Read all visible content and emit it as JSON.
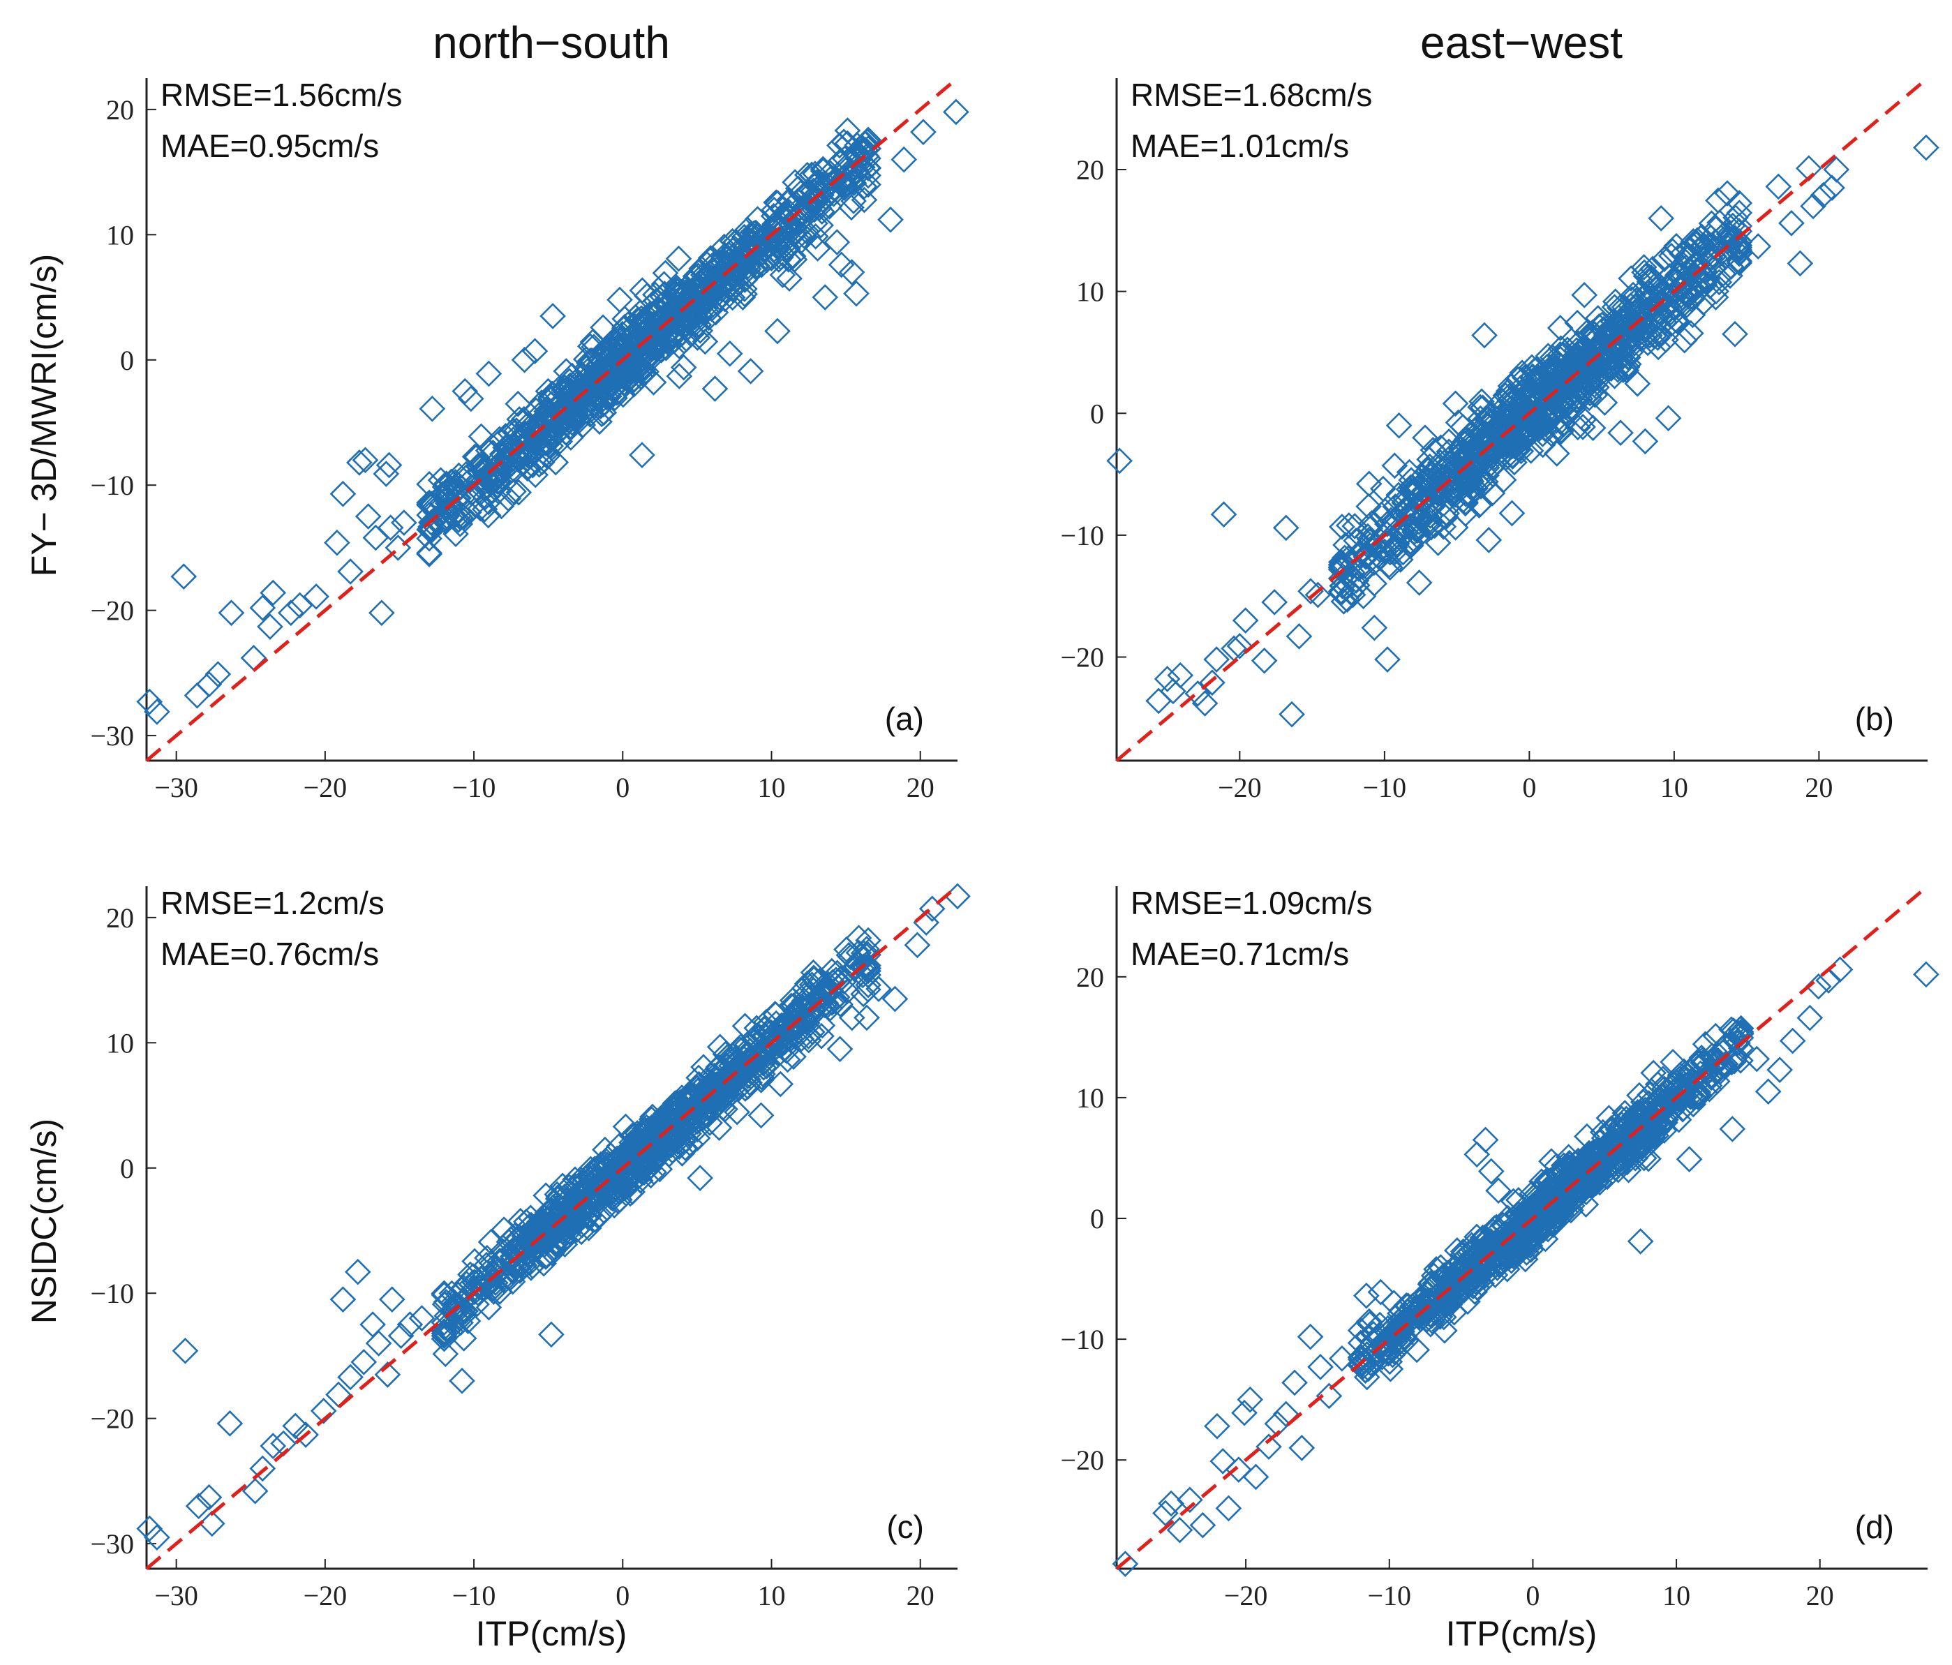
{
  "figure": {
    "column_titles": [
      "north−south",
      "east−west"
    ],
    "ylabels": [
      "FY− 3D/MWRI(cm/s)",
      "NSIDC(cm/s)"
    ],
    "xlabel": "ITP(cm/s)"
  },
  "colors": {
    "marker": "#1f6fb5",
    "fit_line": "#e0201b",
    "axis": "#222222"
  },
  "chart_data": [
    {
      "type": "scatter",
      "panel": "(a)",
      "stat1": "RMSE=1.56cm/s",
      "stat2": "MAE=0.95cm/s",
      "xlim": [
        -32,
        22.5
      ],
      "ylim": [
        -32,
        22.5
      ],
      "xticks": [
        -30,
        -20,
        -10,
        0,
        10,
        20
      ],
      "yticks": [
        -30,
        -20,
        -10,
        0,
        10,
        20
      ],
      "xtick_labels": [
        "−30",
        "−20",
        "−10",
        "0",
        "10",
        "20"
      ],
      "ytick_labels": [
        "−30",
        "−20",
        "−10",
        "0",
        "10",
        "20"
      ],
      "line": [
        [
          -32,
          -32
        ],
        [
          22.5,
          22.5
        ]
      ],
      "cluster": {
        "x_range": [
          -13,
          16.5
        ],
        "spread": 1.4,
        "count": 900,
        "seed": 11
      },
      "points": [
        [
          -31.8,
          -27.3
        ],
        [
          -31.3,
          -28.1
        ],
        [
          -29.5,
          -17.3
        ],
        [
          -28.6,
          -26.8
        ],
        [
          -27.8,
          -25.9
        ],
        [
          -27.2,
          -25.1
        ],
        [
          -26.3,
          -20.2
        ],
        [
          -24.8,
          -23.8
        ],
        [
          -24.2,
          -19.8
        ],
        [
          -23.7,
          -21.3
        ],
        [
          -23.5,
          -18.6
        ],
        [
          -22.3,
          -20.2
        ],
        [
          -21.7,
          -19.6
        ],
        [
          -20.6,
          -18.9
        ],
        [
          -19.2,
          -14.6
        ],
        [
          -18.8,
          -10.7
        ],
        [
          -18.3,
          -16.9
        ],
        [
          -17.7,
          -8.2
        ],
        [
          -17.3,
          -8.0
        ],
        [
          -17.1,
          -12.5
        ],
        [
          -16.6,
          -14.2
        ],
        [
          -16.2,
          -20.2
        ],
        [
          -15.9,
          -9.1
        ],
        [
          -15.7,
          -8.4
        ],
        [
          -15.6,
          -13.4
        ],
        [
          -15.1,
          -15.0
        ],
        [
          -14.7,
          -13.0
        ],
        [
          -12.8,
          -3.9
        ],
        [
          -10.6,
          -2.5
        ],
        [
          -10.2,
          -3.1
        ],
        [
          -9.0,
          -1.1
        ],
        [
          -6.6,
          0.0
        ],
        [
          -5.9,
          0.7
        ],
        [
          -4.7,
          3.5
        ],
        [
          -3.8,
          -0.9
        ],
        [
          -0.8,
          0.3
        ],
        [
          -0.2,
          4.8
        ],
        [
          1.3,
          -7.6
        ],
        [
          3.8,
          -1.3
        ],
        [
          4.1,
          -0.6
        ],
        [
          6.2,
          -2.3
        ],
        [
          7.2,
          0.5
        ],
        [
          8.6,
          -0.9
        ],
        [
          10.4,
          2.3
        ],
        [
          13.6,
          5.0
        ],
        [
          14.4,
          9.4
        ],
        [
          14.7,
          7.6
        ],
        [
          15.4,
          7.0
        ],
        [
          15.7,
          5.3
        ],
        [
          18.0,
          11.2
        ],
        [
          18.9,
          16.0
        ],
        [
          20.2,
          18.2
        ],
        [
          22.4,
          19.8
        ],
        [
          13.1,
          8.9
        ],
        [
          16.5,
          14.0
        ],
        [
          11.2,
          6.5
        ]
      ]
    },
    {
      "type": "scatter",
      "panel": "(b)",
      "stat1": "RMSE=1.68cm/s",
      "stat2": "MAE=1.01cm/s",
      "xlim": [
        -28.5,
        27.5
      ],
      "ylim": [
        -28.5,
        27.5
      ],
      "xticks": [
        -20,
        -10,
        0,
        10,
        20
      ],
      "yticks": [
        -20,
        -10,
        0,
        10,
        20
      ],
      "xtick_labels": [
        "−20",
        "−10",
        "0",
        "10",
        "20"
      ],
      "ytick_labels": [
        "−20",
        "−10",
        "0",
        "10",
        "20"
      ],
      "line": [
        [
          -28.5,
          -28.5
        ],
        [
          27.5,
          27.5
        ]
      ],
      "cluster": {
        "x_range": [
          -13,
          14.5
        ],
        "spread": 1.7,
        "count": 900,
        "seed": 23
      },
      "points": [
        [
          -28.3,
          -3.9
        ],
        [
          -25.6,
          -23.6
        ],
        [
          -25.0,
          -21.8
        ],
        [
          -24.6,
          -22.8
        ],
        [
          -24.1,
          -21.5
        ],
        [
          -22.9,
          -23.0
        ],
        [
          -22.4,
          -23.8
        ],
        [
          -21.9,
          -22.1
        ],
        [
          -21.6,
          -20.2
        ],
        [
          -21.1,
          -8.3
        ],
        [
          -20.4,
          -19.3
        ],
        [
          -20.0,
          -19.1
        ],
        [
          -19.6,
          -17.0
        ],
        [
          -18.3,
          -20.3
        ],
        [
          -17.6,
          -15.5
        ],
        [
          -16.8,
          -9.4
        ],
        [
          -16.4,
          -24.7
        ],
        [
          -15.9,
          -18.3
        ],
        [
          -15.1,
          -14.6
        ],
        [
          -14.6,
          -14.9
        ],
        [
          -12.5,
          -11.9
        ],
        [
          -10.7,
          -17.6
        ],
        [
          -10.1,
          -6.2
        ],
        [
          -9.8,
          -20.2
        ],
        [
          -9.3,
          -4.3
        ],
        [
          -9.0,
          -1.0
        ],
        [
          -7.6,
          -13.9
        ],
        [
          -7.2,
          -2.0
        ],
        [
          -5.8,
          -8.5
        ],
        [
          -5.1,
          0.8
        ],
        [
          -4.4,
          -3.9
        ],
        [
          -3.1,
          6.4
        ],
        [
          -2.8,
          -10.4
        ],
        [
          -1.2,
          -8.2
        ],
        [
          1.9,
          -3.3
        ],
        [
          2.2,
          -1.4
        ],
        [
          3.8,
          9.7
        ],
        [
          4.4,
          -1.2
        ],
        [
          6.3,
          -1.6
        ],
        [
          8.0,
          -2.3
        ],
        [
          9.1,
          16.0
        ],
        [
          9.6,
          -0.4
        ],
        [
          9.9,
          13.3
        ],
        [
          11.5,
          10.5
        ],
        [
          11.6,
          14.2
        ],
        [
          14.2,
          6.5
        ],
        [
          15.8,
          13.7
        ],
        [
          17.2,
          18.6
        ],
        [
          18.1,
          15.6
        ],
        [
          18.7,
          12.3
        ],
        [
          19.3,
          20.1
        ],
        [
          19.6,
          17.0
        ],
        [
          20.3,
          17.9
        ],
        [
          20.9,
          18.5
        ],
        [
          21.2,
          20.0
        ],
        [
          27.4,
          21.8
        ]
      ]
    },
    {
      "type": "scatter",
      "panel": "(c)",
      "stat1": "RMSE=1.2cm/s",
      "stat2": "MAE=0.76cm/s",
      "xlim": [
        -32,
        22.5
      ],
      "ylim": [
        -32,
        22.5
      ],
      "xticks": [
        -30,
        -20,
        -10,
        0,
        10,
        20
      ],
      "yticks": [
        -30,
        -20,
        -10,
        0,
        10,
        20
      ],
      "xtick_labels": [
        "−30",
        "−20",
        "−10",
        "0",
        "10",
        "20"
      ],
      "ytick_labels": [
        "−30",
        "−20",
        "−10",
        "0",
        "10",
        "20"
      ],
      "line": [
        [
          -32,
          -32
        ],
        [
          22.5,
          22.5
        ]
      ],
      "cluster": {
        "x_range": [
          -12,
          16.5
        ],
        "spread": 1.1,
        "count": 900,
        "seed": 37
      },
      "points": [
        [
          -31.8,
          -28.8
        ],
        [
          -31.3,
          -29.5
        ],
        [
          -29.4,
          -14.6
        ],
        [
          -28.5,
          -27.0
        ],
        [
          -27.8,
          -26.3
        ],
        [
          -27.6,
          -28.4
        ],
        [
          -26.4,
          -20.4
        ],
        [
          -24.7,
          -25.8
        ],
        [
          -24.2,
          -24.0
        ],
        [
          -23.5,
          -22.2
        ],
        [
          -22.8,
          -22.0
        ],
        [
          -22.0,
          -20.6
        ],
        [
          -21.3,
          -21.3
        ],
        [
          -20.1,
          -19.4
        ],
        [
          -19.1,
          -18.1
        ],
        [
          -18.8,
          -10.5
        ],
        [
          -18.3,
          -16.7
        ],
        [
          -17.8,
          -8.3
        ],
        [
          -17.4,
          -15.5
        ],
        [
          -16.8,
          -12.5
        ],
        [
          -16.4,
          -14.0
        ],
        [
          -15.8,
          -16.5
        ],
        [
          -15.5,
          -10.5
        ],
        [
          -14.9,
          -13.4
        ],
        [
          -14.3,
          -12.5
        ],
        [
          -13.5,
          -12.0
        ],
        [
          -10.8,
          -17.0
        ],
        [
          -4.8,
          -13.3
        ],
        [
          -3.0,
          -4.3
        ],
        [
          0.2,
          3.3
        ],
        [
          5.2,
          -0.8
        ],
        [
          9.3,
          4.2
        ],
        [
          14.6,
          9.5
        ],
        [
          15.2,
          17.0
        ],
        [
          16.4,
          12.0
        ],
        [
          17.2,
          14.3
        ],
        [
          18.3,
          13.5
        ],
        [
          19.8,
          17.8
        ],
        [
          20.4,
          19.6
        ],
        [
          20.8,
          20.7
        ],
        [
          22.5,
          21.7
        ],
        [
          10.6,
          6.7
        ],
        [
          12.5,
          10.2
        ]
      ]
    },
    {
      "type": "scatter",
      "panel": "(d)",
      "stat1": "RMSE=1.09cm/s",
      "stat2": "MAE=0.71cm/s",
      "xlim": [
        -29,
        27.5
      ],
      "ylim": [
        -29,
        27.5
      ],
      "xticks": [
        -20,
        -10,
        0,
        10,
        20
      ],
      "yticks": [
        -20,
        -10,
        0,
        10,
        20
      ],
      "xtick_labels": [
        "−20",
        "−10",
        "0",
        "10",
        "20"
      ],
      "ytick_labels": [
        "−20",
        "−10",
        "0",
        "10",
        "20"
      ],
      "line": [
        [
          -29,
          -29
        ],
        [
          27.5,
          27.5
        ]
      ],
      "cluster": {
        "x_range": [
          -12,
          14.5
        ],
        "spread": 1.1,
        "count": 900,
        "seed": 53
      },
      "points": [
        [
          -28.4,
          -28.6
        ],
        [
          -25.6,
          -24.4
        ],
        [
          -25.2,
          -23.6
        ],
        [
          -24.6,
          -25.8
        ],
        [
          -23.9,
          -23.3
        ],
        [
          -23.0,
          -25.4
        ],
        [
          -22.0,
          -17.2
        ],
        [
          -21.6,
          -20.1
        ],
        [
          -21.2,
          -24.0
        ],
        [
          -20.5,
          -20.8
        ],
        [
          -20.1,
          -16.1
        ],
        [
          -19.7,
          -15.0
        ],
        [
          -19.3,
          -21.4
        ],
        [
          -18.4,
          -18.9
        ],
        [
          -17.8,
          -17.0
        ],
        [
          -17.2,
          -16.2
        ],
        [
          -16.6,
          -13.6
        ],
        [
          -16.1,
          -19.0
        ],
        [
          -15.5,
          -9.8
        ],
        [
          -14.8,
          -12.3
        ],
        [
          -14.2,
          -14.7
        ],
        [
          -13.3,
          -11.6
        ],
        [
          -11.6,
          -6.4
        ],
        [
          -10.6,
          -6.1
        ],
        [
          -4.5,
          -4.8
        ],
        [
          -3.9,
          5.3
        ],
        [
          -3.3,
          6.5
        ],
        [
          -2.9,
          3.9
        ],
        [
          -2.4,
          2.3
        ],
        [
          7.5,
          -1.9
        ],
        [
          10.9,
          4.9
        ],
        [
          12.3,
          10.7
        ],
        [
          13.9,
          7.4
        ],
        [
          15.6,
          13.2
        ],
        [
          16.4,
          10.5
        ],
        [
          17.2,
          12.3
        ],
        [
          18.1,
          14.7
        ],
        [
          19.3,
          16.6
        ],
        [
          19.9,
          19.2
        ],
        [
          20.6,
          19.7
        ],
        [
          21.4,
          20.6
        ],
        [
          27.4,
          20.2
        ]
      ]
    }
  ]
}
